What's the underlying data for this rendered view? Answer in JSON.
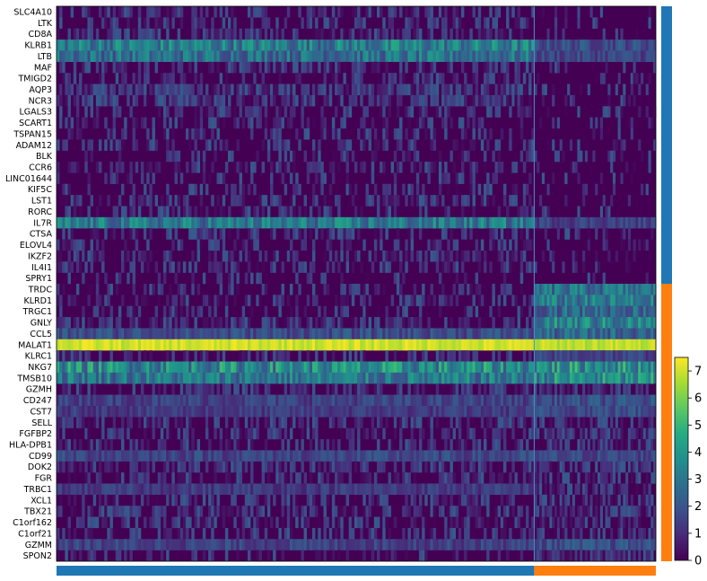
{
  "chart_data": {
    "type": "heatmap",
    "title": "",
    "xlabel": "",
    "ylabel": "",
    "genes": [
      "SLC4A10",
      "LTK",
      "CD8A",
      "KLRB1",
      "LTB",
      "MAF",
      "TMIGD2",
      "AQP3",
      "NCR3",
      "LGALS3",
      "SCART1",
      "TSPAN15",
      "ADAM12",
      "BLK",
      "CCR6",
      "LINC01644",
      "KIF5C",
      "LST1",
      "RORC",
      "IL7R",
      "CTSA",
      "ELOVL4",
      "IKZF2",
      "IL4I1",
      "SPRY1",
      "TRDC",
      "KLRD1",
      "TRGC1",
      "GNLY",
      "CCL5",
      "MALAT1",
      "KLRC1",
      "NKG7",
      "TMSB10",
      "GZMH",
      "CD247",
      "CST7",
      "SELL",
      "FGFBP2",
      "HLA-DPB1",
      "CD99",
      "DOK2",
      "FGR",
      "TRBC1",
      "XCL1",
      "TBX21",
      "C1orf162",
      "C1orf21",
      "GZMM",
      "SPON2"
    ],
    "groups": [
      {
        "color": "#1f77b4",
        "cell_fraction": 0.797,
        "gene_count": 25
      },
      {
        "color": "#ff7f0e",
        "cell_fraction": 0.203,
        "gene_count": 25
      }
    ],
    "mean_expression_group1": [
      0.6,
      0.5,
      0.7,
      3.2,
      2.8,
      0.6,
      0.5,
      1.0,
      0.9,
      0.5,
      0.5,
      0.5,
      0.4,
      0.3,
      0.5,
      0.3,
      0.4,
      0.6,
      0.5,
      3.0,
      0.6,
      0.4,
      0.6,
      0.5,
      0.3,
      0.4,
      0.6,
      0.4,
      0.7,
      1.8,
      7.0,
      0.5,
      3.6,
      3.0,
      0.5,
      1.5,
      1.3,
      0.6,
      0.5,
      0.5,
      1.6,
      0.7,
      0.6,
      1.3,
      0.6,
      0.7,
      0.6,
      0.5,
      1.5,
      0.4
    ],
    "mean_expression_group2": [
      0.2,
      0.2,
      0.2,
      1.8,
      1.6,
      0.2,
      0.2,
      0.3,
      0.3,
      0.2,
      0.2,
      0.2,
      0.2,
      0.2,
      0.2,
      0.2,
      0.2,
      0.2,
      0.2,
      1.5,
      0.3,
      0.2,
      0.3,
      0.2,
      0.2,
      2.8,
      3.0,
      2.6,
      3.4,
      2.5,
      6.8,
      1.5,
      3.8,
      3.6,
      0.8,
      1.8,
      1.8,
      0.6,
      1.0,
      0.8,
      1.6,
      0.9,
      0.8,
      0.8,
      0.7,
      1.0,
      0.7,
      0.6,
      1.8,
      0.9
    ],
    "colorbar": {
      "colormap": "viridis",
      "ticks": [
        "0",
        "1",
        "2",
        "3",
        "4",
        "5",
        "6",
        "7"
      ],
      "range": [
        0,
        7.5
      ]
    },
    "grid": false
  }
}
